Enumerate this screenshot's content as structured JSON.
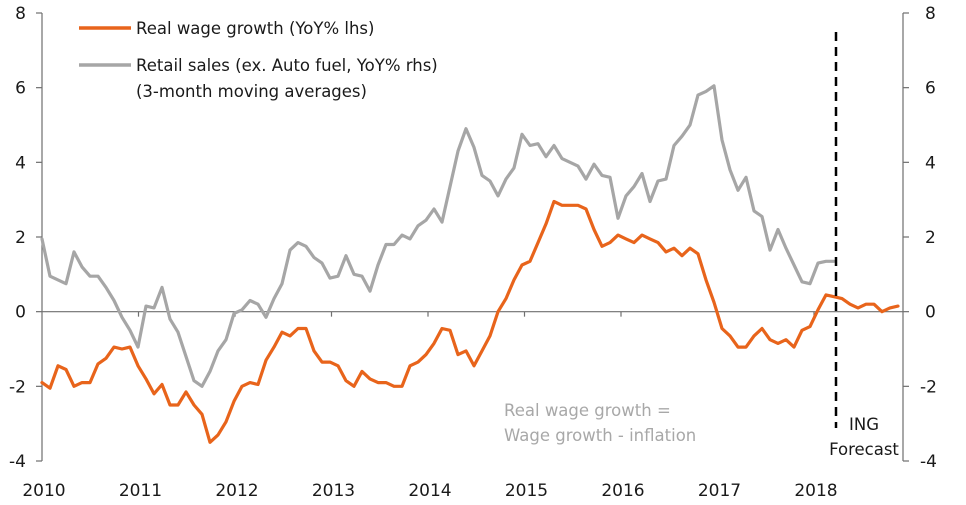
{
  "chart_data": {
    "type": "line",
    "title": "",
    "xlabel": "",
    "ylabel_left": "",
    "ylabel_right": "",
    "x_start": "2010-01",
    "x_frequency": "monthly",
    "x_tick_labels": [
      "2010",
      "2011",
      "2012",
      "2013",
      "2014",
      "2015",
      "2016",
      "2017",
      "2018"
    ],
    "ylim_left": [
      -4,
      8
    ],
    "ylim_right": [
      -4,
      8
    ],
    "y_ticks_left": [
      "8",
      "6",
      "4",
      "2",
      "0",
      "-2",
      "-4"
    ],
    "y_ticks_right": [
      "8",
      "6",
      "4",
      "2",
      "0",
      "-2",
      "-4"
    ],
    "grid": false,
    "legend_position": "top-left",
    "series": [
      {
        "name": "Real wage growth (YoY% lhs)",
        "axis": "left",
        "color": "#e8641b",
        "values": [
          -1.9,
          -2.05,
          -1.45,
          -1.55,
          -2.0,
          -1.9,
          -1.9,
          -1.4,
          -1.25,
          -0.95,
          -1.0,
          -0.95,
          -1.45,
          -1.8,
          -2.2,
          -1.95,
          -2.5,
          -2.5,
          -2.15,
          -2.5,
          -2.75,
          -3.5,
          -3.3,
          -2.95,
          -2.4,
          -2.0,
          -1.9,
          -1.95,
          -1.3,
          -0.95,
          -0.55,
          -0.65,
          -0.45,
          -0.45,
          -1.05,
          -1.35,
          -1.35,
          -1.45,
          -1.85,
          -2.0,
          -1.6,
          -1.8,
          -1.9,
          -1.9,
          -2.0,
          -2.0,
          -1.45,
          -1.35,
          -1.15,
          -0.85,
          -0.45,
          -0.5,
          -1.15,
          -1.05,
          -1.45,
          -1.05,
          -0.65,
          0.0,
          0.35,
          0.85,
          1.25,
          1.35,
          1.85,
          2.35,
          2.95,
          2.85,
          2.85,
          2.85,
          2.75,
          2.2,
          1.75,
          1.85,
          2.05,
          1.95,
          1.85,
          2.05,
          1.95,
          1.85,
          1.6,
          1.7,
          1.5,
          1.7,
          1.55,
          0.85,
          0.25,
          -0.45,
          -0.65,
          -0.95,
          -0.95,
          -0.65,
          -0.45,
          -0.75,
          -0.85,
          -0.75,
          -0.95,
          -0.5,
          -0.4,
          0.05,
          0.45,
          0.4,
          0.35,
          0.2,
          0.1,
          0.2,
          0.2,
          0.0,
          0.1,
          0.15
        ]
      },
      {
        "name": "Retail sales (ex. Auto fuel, YoY% rhs)",
        "axis": "right",
        "color": "#a6a6a6",
        "values": [
          1.95,
          0.95,
          0.85,
          0.75,
          1.6,
          1.2,
          0.95,
          0.95,
          0.65,
          0.3,
          -0.15,
          -0.5,
          -0.95,
          0.15,
          0.1,
          0.65,
          -0.2,
          -0.55,
          -1.2,
          -1.85,
          -2.0,
          -1.6,
          -1.05,
          -0.75,
          -0.05,
          0.05,
          0.3,
          0.2,
          -0.15,
          0.35,
          0.75,
          1.65,
          1.85,
          1.75,
          1.45,
          1.3,
          0.9,
          0.95,
          1.5,
          1.0,
          0.95,
          0.55,
          1.25,
          1.8,
          1.8,
          2.05,
          1.95,
          2.3,
          2.45,
          2.75,
          2.4,
          3.35,
          4.3,
          4.9,
          4.4,
          3.65,
          3.5,
          3.1,
          3.55,
          3.85,
          4.75,
          4.45,
          4.5,
          4.15,
          4.45,
          4.1,
          4.0,
          3.9,
          3.55,
          3.95,
          3.65,
          3.6,
          2.5,
          3.1,
          3.35,
          3.7,
          2.95,
          3.5,
          3.55,
          4.45,
          4.7,
          5.0,
          5.8,
          5.9,
          6.05,
          4.6,
          3.8,
          3.25,
          3.6,
          2.7,
          2.55,
          1.65,
          2.2,
          1.7,
          1.25,
          0.8,
          0.75,
          1.3,
          1.35,
          1.35
        ]
      }
    ],
    "legend": {
      "entries": [
        {
          "label": "Real wage growth (YoY% lhs)",
          "color": "#e8641b"
        },
        {
          "label": "Retail sales (ex. Auto fuel, YoY% rhs)",
          "color": "#a6a6a6"
        }
      ],
      "subnote": "(3-month moving averages)"
    },
    "annotations": {
      "formula_line1": "Real wage growth =",
      "formula_line2": "Wage growth - inflation",
      "forecast_line1": "ING",
      "forecast_line2": "Forecast",
      "forecast_start_month_index": 99
    }
  }
}
